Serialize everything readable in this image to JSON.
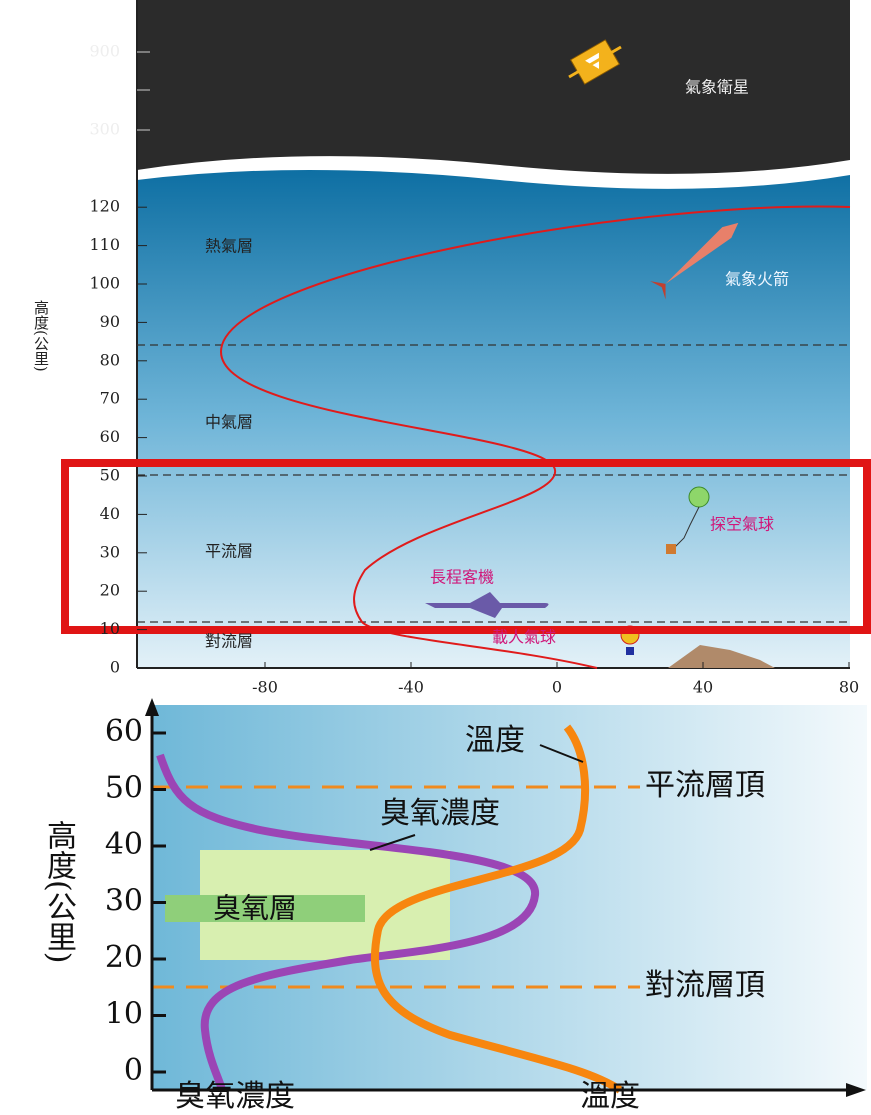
{
  "top_panel": {
    "y_axis_title": "高度(公里)",
    "upper_yticks": [
      900,
      300
    ],
    "yticks": [
      0,
      10,
      20,
      30,
      40,
      50,
      60,
      70,
      80,
      90,
      100,
      110,
      120
    ],
    "xticks": [
      -80,
      -40,
      0,
      40,
      80
    ],
    "layers": [
      "熱氣層",
      "中氣層",
      "平流層",
      "對流層"
    ],
    "objects": [
      "氣象衛星",
      "氣象火箭",
      "探空氣球",
      "長程客機",
      "載人氣球"
    ]
  },
  "bottom_panel": {
    "y_axis_title": "高度(公里)",
    "yticks": [
      0,
      10,
      20,
      30,
      40,
      50,
      60
    ],
    "x_labels": [
      "臭氧濃度",
      "溫度"
    ],
    "curve_labels": [
      "溫度",
      "臭氧濃度"
    ],
    "boundaries": [
      "平流層頂",
      "對流層頂"
    ],
    "ozone_layer": "臭氧層"
  }
}
